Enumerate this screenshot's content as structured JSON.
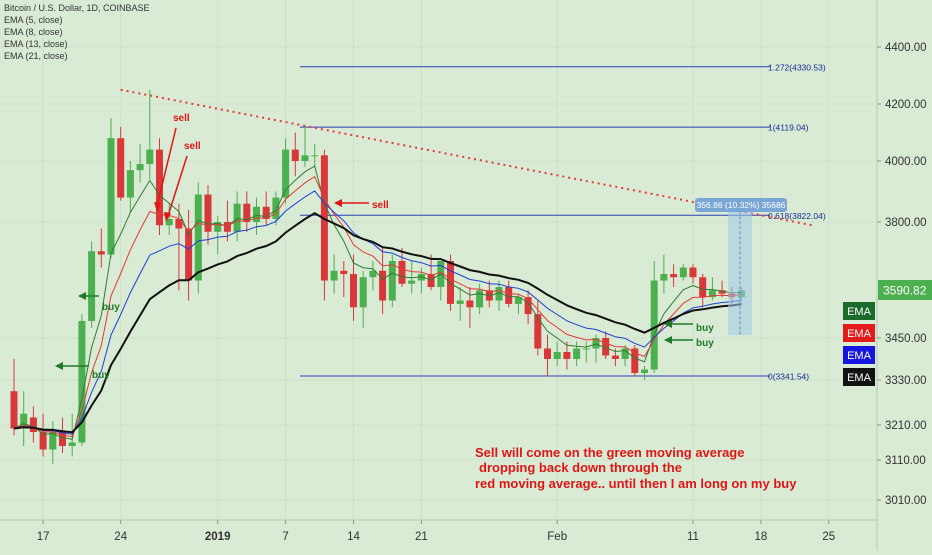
{
  "chart_data": {
    "type": "candlestick",
    "title": "Bitcoin / U.S. Dollar, 1D, COINBASE",
    "indicators": [
      "EMA (5, close)",
      "EMA (8, close)",
      "EMA (13, close)",
      "EMA (21, close)"
    ],
    "ema_colors": {
      "ema5": "#2e7d32",
      "ema8": "#e53935",
      "ema13": "#1e3fd8",
      "ema21": "#111111"
    },
    "ema_badges": [
      {
        "label": "EMA",
        "color": "#1b6b2a"
      },
      {
        "label": "EMA",
        "color": "#e31b1b"
      },
      {
        "label": "EMA",
        "color": "#1515e0"
      },
      {
        "label": "EMA",
        "color": "#111111"
      }
    ],
    "y_ticks": [
      "4400.00",
      "4200.00",
      "4000.00",
      "3800.00",
      "3590.82",
      "3450.00",
      "3330.00",
      "3210.00",
      "3110.00",
      "3010.00"
    ],
    "x_ticks": [
      "17",
      "24",
      "2019",
      "7",
      "14",
      "21",
      "Feb",
      "11",
      "18",
      "25"
    ],
    "last_price": "3590.82",
    "fib_levels": [
      {
        "label": "1.272(4330.53)",
        "value": 4330.53
      },
      {
        "label": "1(4119.04)",
        "value": 4119.04
      },
      {
        "label": "0.618(3822.04)",
        "value": 3822.04
      },
      {
        "label": "0(3341.54)",
        "value": 3341.54
      }
    ],
    "measure_label": "356.86 (10.32%) 35686",
    "annotations": {
      "sell": [
        "sell",
        "sell",
        "sell"
      ],
      "buy": [
        "buy",
        "buy",
        "buy",
        "buy"
      ],
      "comment": [
        "Sell will come on the green moving average",
        "dropping back down through the",
        "red moving average.. until then I am long on my buy"
      ]
    },
    "candles": [
      {
        "o": 3300,
        "h": 3390,
        "l": 3180,
        "c": 3200
      },
      {
        "o": 3210,
        "h": 3300,
        "l": 3150,
        "c": 3240
      },
      {
        "o": 3230,
        "h": 3260,
        "l": 3160,
        "c": 3190
      },
      {
        "o": 3190,
        "h": 3240,
        "l": 3120,
        "c": 3140
      },
      {
        "o": 3140,
        "h": 3220,
        "l": 3100,
        "c": 3190
      },
      {
        "o": 3190,
        "h": 3230,
        "l": 3130,
        "c": 3150
      },
      {
        "o": 3150,
        "h": 3240,
        "l": 3120,
        "c": 3160
      },
      {
        "o": 3160,
        "h": 3520,
        "l": 3150,
        "c": 3500
      },
      {
        "o": 3500,
        "h": 3740,
        "l": 3480,
        "c": 3710
      },
      {
        "o": 3710,
        "h": 3780,
        "l": 3660,
        "c": 3700
      },
      {
        "o": 3700,
        "h": 4150,
        "l": 3690,
        "c": 4080
      },
      {
        "o": 4080,
        "h": 4120,
        "l": 3870,
        "c": 3880
      },
      {
        "o": 3880,
        "h": 4000,
        "l": 3830,
        "c": 3970
      },
      {
        "o": 3970,
        "h": 4060,
        "l": 3930,
        "c": 3990
      },
      {
        "o": 3990,
        "h": 4250,
        "l": 3940,
        "c": 4040
      },
      {
        "o": 4040,
        "h": 4080,
        "l": 3760,
        "c": 3790
      },
      {
        "o": 3790,
        "h": 3860,
        "l": 3760,
        "c": 3810
      },
      {
        "o": 3810,
        "h": 3860,
        "l": 3590,
        "c": 3780
      },
      {
        "o": 3780,
        "h": 3840,
        "l": 3560,
        "c": 3620
      },
      {
        "o": 3620,
        "h": 3930,
        "l": 3580,
        "c": 3890
      },
      {
        "o": 3890,
        "h": 3920,
        "l": 3730,
        "c": 3770
      },
      {
        "o": 3770,
        "h": 3820,
        "l": 3700,
        "c": 3800
      },
      {
        "o": 3800,
        "h": 3870,
        "l": 3740,
        "c": 3770
      },
      {
        "o": 3770,
        "h": 3900,
        "l": 3740,
        "c": 3860
      },
      {
        "o": 3860,
        "h": 3900,
        "l": 3770,
        "c": 3800
      },
      {
        "o": 3800,
        "h": 3880,
        "l": 3760,
        "c": 3850
      },
      {
        "o": 3850,
        "h": 3900,
        "l": 3790,
        "c": 3810
      },
      {
        "o": 3810,
        "h": 3900,
        "l": 3790,
        "c": 3880
      },
      {
        "o": 3880,
        "h": 4080,
        "l": 3860,
        "c": 4040
      },
      {
        "o": 4040,
        "h": 4100,
        "l": 3950,
        "c": 4000
      },
      {
        "o": 4000,
        "h": 4120,
        "l": 3980,
        "c": 4020
      },
      {
        "o": 4020,
        "h": 4060,
        "l": 3980,
        "c": 4020
      },
      {
        "o": 4020,
        "h": 4040,
        "l": 3560,
        "c": 3620
      },
      {
        "o": 3620,
        "h": 3700,
        "l": 3580,
        "c": 3650
      },
      {
        "o": 3650,
        "h": 3680,
        "l": 3570,
        "c": 3640
      },
      {
        "o": 3640,
        "h": 3700,
        "l": 3500,
        "c": 3540
      },
      {
        "o": 3540,
        "h": 3650,
        "l": 3480,
        "c": 3630
      },
      {
        "o": 3630,
        "h": 3680,
        "l": 3590,
        "c": 3650
      },
      {
        "o": 3650,
        "h": 3720,
        "l": 3520,
        "c": 3560
      },
      {
        "o": 3560,
        "h": 3700,
        "l": 3540,
        "c": 3680
      },
      {
        "o": 3680,
        "h": 3720,
        "l": 3600,
        "c": 3610
      },
      {
        "o": 3610,
        "h": 3680,
        "l": 3580,
        "c": 3620
      },
      {
        "o": 3620,
        "h": 3660,
        "l": 3580,
        "c": 3640
      },
      {
        "o": 3640,
        "h": 3700,
        "l": 3590,
        "c": 3600
      },
      {
        "o": 3600,
        "h": 3680,
        "l": 3560,
        "c": 3680
      },
      {
        "o": 3680,
        "h": 3700,
        "l": 3530,
        "c": 3550
      },
      {
        "o": 3550,
        "h": 3600,
        "l": 3500,
        "c": 3560
      },
      {
        "o": 3560,
        "h": 3600,
        "l": 3480,
        "c": 3540
      },
      {
        "o": 3540,
        "h": 3610,
        "l": 3520,
        "c": 3590
      },
      {
        "o": 3590,
        "h": 3620,
        "l": 3540,
        "c": 3560
      },
      {
        "o": 3560,
        "h": 3620,
        "l": 3530,
        "c": 3600
      },
      {
        "o": 3600,
        "h": 3620,
        "l": 3540,
        "c": 3550
      },
      {
        "o": 3550,
        "h": 3580,
        "l": 3520,
        "c": 3570
      },
      {
        "o": 3570,
        "h": 3590,
        "l": 3490,
        "c": 3520
      },
      {
        "o": 3520,
        "h": 3560,
        "l": 3400,
        "c": 3420
      },
      {
        "o": 3420,
        "h": 3460,
        "l": 3340,
        "c": 3390
      },
      {
        "o": 3390,
        "h": 3440,
        "l": 3370,
        "c": 3410
      },
      {
        "o": 3410,
        "h": 3440,
        "l": 3360,
        "c": 3390
      },
      {
        "o": 3390,
        "h": 3440,
        "l": 3370,
        "c": 3420
      },
      {
        "o": 3420,
        "h": 3440,
        "l": 3380,
        "c": 3420
      },
      {
        "o": 3420,
        "h": 3460,
        "l": 3380,
        "c": 3450
      },
      {
        "o": 3450,
        "h": 3470,
        "l": 3390,
        "c": 3400
      },
      {
        "o": 3400,
        "h": 3420,
        "l": 3370,
        "c": 3390
      },
      {
        "o": 3390,
        "h": 3430,
        "l": 3370,
        "c": 3420
      },
      {
        "o": 3420,
        "h": 3430,
        "l": 3340,
        "c": 3350
      },
      {
        "o": 3350,
        "h": 3370,
        "l": 3330,
        "c": 3360
      },
      {
        "o": 3360,
        "h": 3680,
        "l": 3350,
        "c": 3620
      },
      {
        "o": 3620,
        "h": 3700,
        "l": 3580,
        "c": 3640
      },
      {
        "o": 3640,
        "h": 3670,
        "l": 3600,
        "c": 3630
      },
      {
        "o": 3630,
        "h": 3670,
        "l": 3620,
        "c": 3660
      },
      {
        "o": 3660,
        "h": 3670,
        "l": 3610,
        "c": 3630
      },
      {
        "o": 3630,
        "h": 3640,
        "l": 3540,
        "c": 3570
      },
      {
        "o": 3570,
        "h": 3630,
        "l": 3560,
        "c": 3590
      },
      {
        "o": 3590,
        "h": 3620,
        "l": 3570,
        "c": 3580
      },
      {
        "o": 3580,
        "h": 3600,
        "l": 3550,
        "c": 3570
      },
      {
        "o": 3570,
        "h": 3600,
        "l": 3560,
        "c": 3590
      }
    ]
  }
}
